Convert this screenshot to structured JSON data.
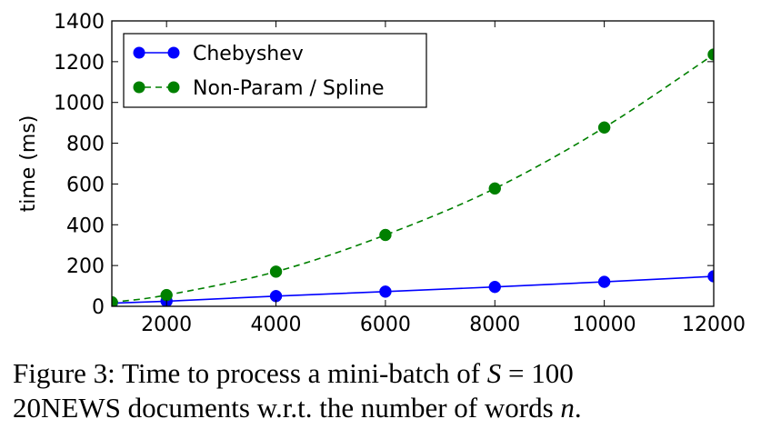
{
  "chart_data": {
    "type": "line",
    "title": "",
    "xlabel": "",
    "ylabel": "time (ms)",
    "xlim": [
      1000,
      12000
    ],
    "ylim": [
      0,
      1400
    ],
    "xticks": [
      2000,
      4000,
      6000,
      8000,
      10000,
      12000
    ],
    "yticks": [
      0,
      200,
      400,
      600,
      800,
      1000,
      1200,
      1400
    ],
    "grid": false,
    "legend_position": "top-left",
    "series": [
      {
        "name": "Chebyshev",
        "color": "#0000ff",
        "line_style": "solid",
        "marker": "circle",
        "x": [
          1000,
          2000,
          4000,
          6000,
          8000,
          10000,
          12000
        ],
        "y": [
          15,
          25,
          50,
          72,
          95,
          120,
          147
        ]
      },
      {
        "name": "Non-Param / Spline",
        "color": "#008000",
        "line_style": "dashed",
        "marker": "circle",
        "x": [
          1000,
          2000,
          4000,
          6000,
          8000,
          10000,
          12000
        ],
        "y": [
          20,
          55,
          170,
          350,
          578,
          877,
          1235
        ]
      }
    ]
  },
  "caption": {
    "line1_prefix": "Figure 3:  Time to process a mini-batch of ",
    "line1_var": "S",
    "line1_eq": " = 100",
    "line2_prefix": "20NEWS documents w.r.t. the number of words ",
    "line2_var": "n",
    "line2_suffix": "."
  }
}
